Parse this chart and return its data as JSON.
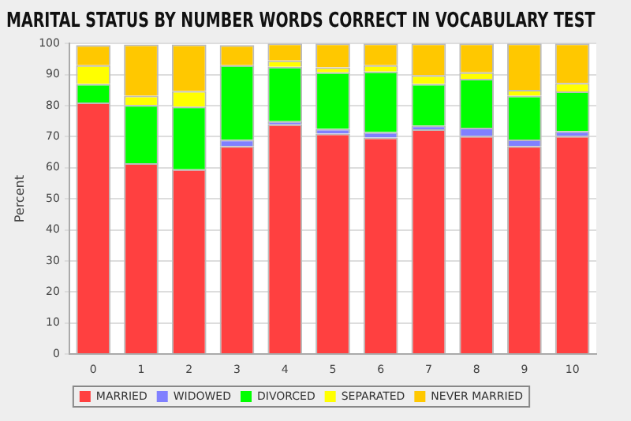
{
  "chart_data": {
    "type": "bar",
    "title": "MARITAL STATUS BY NUMBER WORDS CORRECT IN VOCABULARY TEST",
    "ylabel": "Percent",
    "stacked": true,
    "categories": [
      "0",
      "1",
      "2",
      "3",
      "4",
      "5",
      "6",
      "7",
      "8",
      "9",
      "10"
    ],
    "series": [
      {
        "name": "MARRIED",
        "color": "#ff4040",
        "values": [
          81,
          61.5,
          59.5,
          67,
          74,
          71,
          69.7,
          72.4,
          70.2,
          67,
          70.2
        ]
      },
      {
        "name": "WIDOWED",
        "color": "#8080ff",
        "values": [
          null,
          null,
          null,
          2,
          1,
          1.5,
          1.8,
          1.2,
          2.7,
          2.1,
          1.6
        ]
      },
      {
        "name": "DIVORCED",
        "color": "#00ff00",
        "values": [
          6,
          18.7,
          20.2,
          24,
          17.5,
          18.2,
          19.5,
          13.4,
          15.7,
          14.1,
          12.8
        ]
      },
      {
        "name": "SEPARATED",
        "color": "#ffff00",
        "values": [
          6,
          3,
          5,
          null,
          2,
          1.6,
          2,
          2.8,
          2.1,
          1.9,
          2.7
        ]
      },
      {
        "name": "NEVER MARRIED",
        "color": "#ffc800",
        "values": [
          6.5,
          16.5,
          15,
          6.5,
          5.5,
          7.7,
          7,
          10.2,
          9.3,
          14.9,
          12.7
        ]
      }
    ],
    "ylim": [
      0,
      100
    ],
    "yticks": [
      0,
      10,
      20,
      30,
      40,
      50,
      60,
      70,
      80,
      90,
      100
    ],
    "grid": "y",
    "legend": "bottom"
  }
}
